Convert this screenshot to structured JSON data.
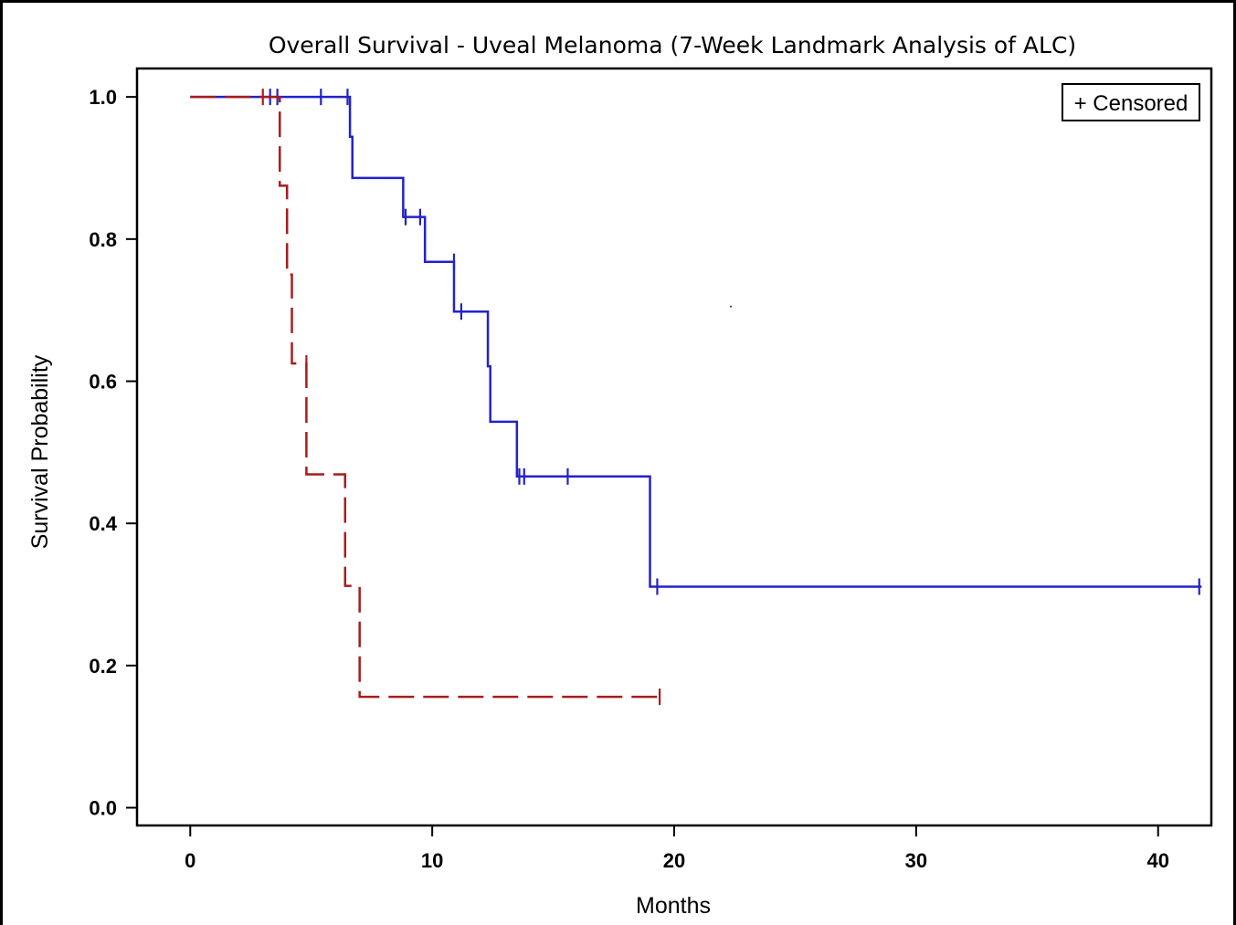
{
  "chart_data": {
    "type": "line",
    "title": "Overall Survival - Uveal Melanoma (7-Week Landmark Analysis of ALC)",
    "xlabel": "Months",
    "ylabel": "Survival Probability",
    "xlim": [
      -2.2,
      42.2
    ],
    "ylim": [
      -0.025,
      1.04
    ],
    "xticks": [
      0,
      10,
      20,
      30,
      40
    ],
    "xtick_labels": [
      "0",
      "10",
      "20",
      "30",
      "40"
    ],
    "yticks": [
      0.0,
      0.2,
      0.4,
      0.6,
      0.8,
      1.0
    ],
    "ytick_labels": [
      "0.0",
      "0.2",
      "0.4",
      "0.6",
      "0.8",
      "1.0"
    ],
    "grid": false,
    "legend": {
      "position": "top-right",
      "text": "+ Censored"
    },
    "series": [
      {
        "color": "#2222cc",
        "dash": "solid",
        "steps": [
          [
            0,
            1.0
          ],
          [
            6.6,
            0.944
          ],
          [
            6.7,
            0.886
          ],
          [
            8.8,
            0.831
          ],
          [
            9.7,
            0.768
          ],
          [
            10.9,
            0.698
          ],
          [
            12.3,
            0.621
          ],
          [
            12.4,
            0.543
          ],
          [
            13.5,
            0.466
          ],
          [
            19.0,
            0.311
          ],
          [
            41.8,
            0.311
          ]
        ],
        "censored": [
          [
            3.3,
            1.0
          ],
          [
            3.6,
            1.0
          ],
          [
            5.4,
            1.0
          ],
          [
            6.5,
            1.0
          ],
          [
            8.9,
            0.831
          ],
          [
            9.5,
            0.831
          ],
          [
            10.9,
            0.768
          ],
          [
            11.2,
            0.698
          ],
          [
            13.6,
            0.466
          ],
          [
            13.8,
            0.466
          ],
          [
            15.6,
            0.466
          ],
          [
            19.3,
            0.311
          ],
          [
            41.7,
            0.311
          ]
        ]
      },
      {
        "color": "#a81c1c",
        "dash": "dashed",
        "steps": [
          [
            0,
            1.0
          ],
          [
            3.7,
            0.875
          ],
          [
            4.0,
            0.75
          ],
          [
            4.2,
            0.625
          ],
          [
            4.8,
            0.469
          ],
          [
            6.4,
            0.312
          ],
          [
            7.0,
            0.156
          ],
          [
            19.4,
            0.156
          ]
        ],
        "censored": [
          [
            3.0,
            1.0
          ],
          [
            4.8,
            0.625
          ],
          [
            19.4,
            0.156
          ]
        ]
      }
    ],
    "annotations": [
      "·"
    ]
  }
}
